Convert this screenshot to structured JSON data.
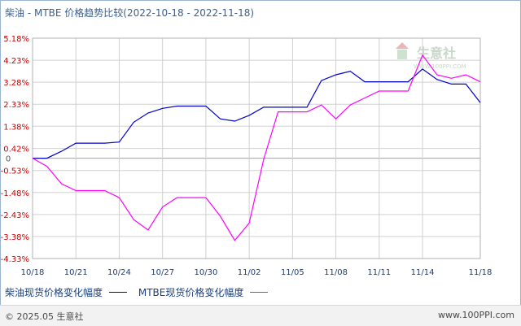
{
  "header": {
    "title": "柴油 - MTBE 价格趋势比较(2022-10-18 - 2022-11-18)"
  },
  "watermark": {
    "text": "生意社",
    "url": "WWW.100PPI.COM"
  },
  "footer": {
    "copyright": "© 2025.05 生意社",
    "website": "www.100PPI.com"
  },
  "colors": {
    "series1": "#0000cc",
    "series2": "#ff00ff",
    "grid": "#d0d0d0",
    "axis_text": "#cc0000"
  },
  "chart_data": {
    "type": "line",
    "title": "柴油 - MTBE 价格趋势比较(2022-10-18 - 2022-11-18)",
    "xlabel": "",
    "ylabel": "",
    "ylim": [
      -4.33,
      5.18
    ],
    "y_ticks": [
      "5.18%",
      "4.23%",
      "3.28%",
      "2.33%",
      "1.38%",
      "0.42%",
      "-0.53%",
      "-1.48%",
      "-2.43%",
      "-3.38%",
      "-4.33%"
    ],
    "y_tick_values": [
      5.18,
      4.23,
      3.28,
      2.33,
      1.38,
      0.42,
      -0.53,
      -1.48,
      -2.43,
      -3.38,
      -4.33
    ],
    "zero_label": "0",
    "x_ticks": [
      "10/18",
      "10/21",
      "10/24",
      "10/27",
      "10/30",
      "11/02",
      "11/05",
      "11/08",
      "11/11",
      "11/14",
      "11/18"
    ],
    "x": [
      "10/18",
      "10/19",
      "10/20",
      "10/21",
      "10/22",
      "10/23",
      "10/24",
      "10/25",
      "10/26",
      "10/27",
      "10/28",
      "10/29",
      "10/30",
      "10/31",
      "11/01",
      "11/02",
      "11/03",
      "11/04",
      "11/05",
      "11/06",
      "11/07",
      "11/08",
      "11/09",
      "11/10",
      "11/11",
      "11/12",
      "11/13",
      "11/14",
      "11/15",
      "11/16",
      "11/17",
      "11/18"
    ],
    "grid": true,
    "legend_position": "bottom-left",
    "series": [
      {
        "name": "柴油现货价格变化幅度",
        "values": [
          0.0,
          0.0,
          0.3,
          0.65,
          0.65,
          0.65,
          0.7,
          1.55,
          1.95,
          2.15,
          2.25,
          2.25,
          2.25,
          1.7,
          1.6,
          1.85,
          2.2,
          2.2,
          2.2,
          2.2,
          3.35,
          3.6,
          3.75,
          3.3,
          3.3,
          3.3,
          3.3,
          3.85,
          3.4,
          3.2,
          3.2,
          2.4
        ]
      },
      {
        "name": "MTBE现货价格变化幅度",
        "values": [
          0.0,
          -0.35,
          -1.1,
          -1.4,
          -1.4,
          -1.4,
          -1.7,
          -2.65,
          -3.1,
          -2.1,
          -1.7,
          -1.7,
          -1.7,
          -2.5,
          -3.55,
          -2.8,
          -0.05,
          2.0,
          2.0,
          2.0,
          2.3,
          1.7,
          2.3,
          2.6,
          2.9,
          2.9,
          2.9,
          4.45,
          3.6,
          3.45,
          3.6,
          3.3
        ]
      }
    ]
  }
}
